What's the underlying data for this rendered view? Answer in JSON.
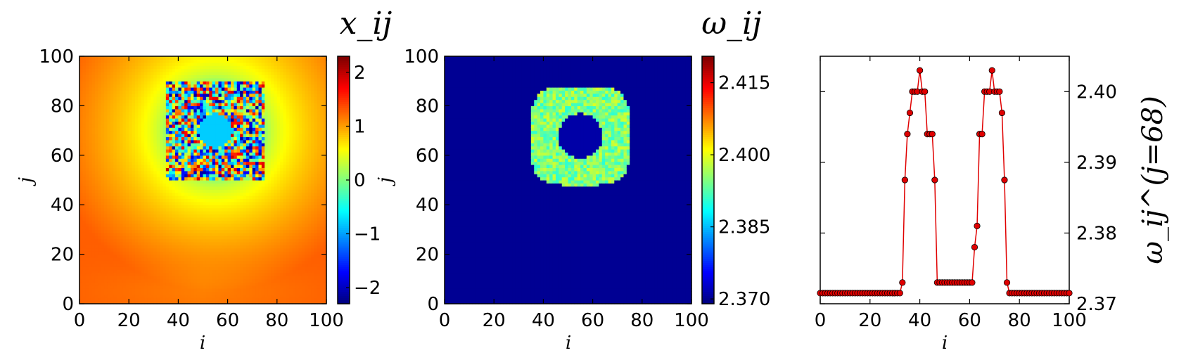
{
  "chart_data": [
    {
      "type": "heatmap",
      "title": "x_ij",
      "xlabel": "i",
      "ylabel": "j",
      "xlim": [
        0,
        100
      ],
      "ylim": [
        0,
        100
      ],
      "xticks": [
        "0",
        "20",
        "40",
        "60",
        "80",
        "100"
      ],
      "yticks": [
        "0",
        "20",
        "40",
        "60",
        "80",
        "100"
      ],
      "colorbar": {
        "range": [
          -2.3,
          2.3
        ],
        "ticks": [
          "−2",
          "−1",
          "0",
          "1",
          "2"
        ],
        "tick_values": [
          -2,
          -1,
          0,
          1,
          2
        ]
      },
      "colormap": "jet",
      "description_values": {
        "center": [
          55,
          70
        ],
        "incoherent_ring_inner_radius": 7,
        "incoherent_ring_outer_radius": 20,
        "background_near": 0.0,
        "background_far": 1.3,
        "core_value": -0.8
      }
    },
    {
      "type": "heatmap",
      "title": "ω_ij",
      "xlabel": "i",
      "ylabel": "j",
      "xlim": [
        0,
        100
      ],
      "ylim": [
        0,
        100
      ],
      "xticks": [
        "0",
        "20",
        "40",
        "60",
        "80",
        "100"
      ],
      "yticks": [
        "0",
        "20",
        "40",
        "60",
        "80",
        "100"
      ],
      "colorbar": {
        "range": [
          2.369,
          2.4205
        ],
        "ticks": [
          "2.370",
          "2.385",
          "2.400",
          "2.415"
        ],
        "tick_values": [
          2.37,
          2.385,
          2.4,
          2.415
        ]
      },
      "colormap": "jet",
      "description_values": {
        "center": [
          55,
          68
        ],
        "background": 2.37,
        "core": 2.371,
        "ring": 2.393,
        "ring_peak": 2.399
      }
    },
    {
      "type": "line",
      "title": "",
      "xlabel": "i",
      "ylabel": "ω_ij^(j=68)",
      "xlim": [
        0,
        100
      ],
      "ylim": [
        2.37,
        2.405
      ],
      "xticks": [
        "0",
        "20",
        "40",
        "60",
        "80",
        "100"
      ],
      "yticks": [
        "2.37",
        "2.38",
        "2.39",
        "2.40"
      ],
      "ytick_values": [
        2.37,
        2.38,
        2.39,
        2.4
      ],
      "color": "#e00000",
      "series": [
        {
          "x": [
            0,
            1,
            2,
            3,
            4,
            5,
            6,
            7,
            8,
            9,
            10,
            11,
            12,
            13,
            14,
            15,
            16,
            17,
            18,
            19,
            20,
            21,
            22,
            23,
            24,
            25,
            26,
            27,
            28,
            29,
            30,
            31,
            32,
            33,
            34,
            35,
            36,
            37,
            38,
            39,
            40,
            41,
            42,
            43,
            44,
            45,
            46,
            47,
            48,
            49,
            50,
            51,
            52,
            53,
            54,
            55,
            56,
            57,
            58,
            59,
            60,
            61,
            62,
            63,
            64,
            65,
            66,
            67,
            68,
            69,
            70,
            71,
            72,
            73,
            74,
            75,
            76,
            77,
            78,
            79,
            80,
            81,
            82,
            83,
            84,
            85,
            86,
            87,
            88,
            89,
            90,
            91,
            92,
            93,
            94,
            95,
            96,
            97,
            98,
            99,
            100
          ],
          "y": [
            2.3715,
            2.3715,
            2.3715,
            2.3715,
            2.3715,
            2.3715,
            2.3715,
            2.3715,
            2.3715,
            2.3715,
            2.3715,
            2.3715,
            2.3715,
            2.3715,
            2.3715,
            2.3715,
            2.3715,
            2.3715,
            2.3715,
            2.3715,
            2.3715,
            2.3715,
            2.3715,
            2.3715,
            2.3715,
            2.3715,
            2.3715,
            2.3715,
            2.3715,
            2.3715,
            2.3715,
            2.3715,
            2.3715,
            2.373,
            2.3875,
            2.394,
            2.397,
            2.4,
            2.4,
            2.4,
            2.403,
            2.4,
            2.4,
            2.394,
            2.394,
            2.394,
            2.3875,
            2.373,
            2.373,
            2.373,
            2.373,
            2.373,
            2.373,
            2.373,
            2.373,
            2.373,
            2.373,
            2.373,
            2.373,
            2.373,
            2.373,
            2.373,
            2.378,
            2.381,
            2.394,
            2.394,
            2.4,
            2.4,
            2.4,
            2.403,
            2.4,
            2.4,
            2.4,
            2.397,
            2.3875,
            2.373,
            2.3715,
            2.3715,
            2.3715,
            2.3715,
            2.3715,
            2.3715,
            2.3715,
            2.3715,
            2.3715,
            2.3715,
            2.3715,
            2.3715,
            2.3715,
            2.3715,
            2.3715,
            2.3715,
            2.3715,
            2.3715,
            2.3715,
            2.3715,
            2.3715,
            2.3715,
            2.3715,
            2.3715,
            2.3715
          ]
        }
      ]
    }
  ]
}
